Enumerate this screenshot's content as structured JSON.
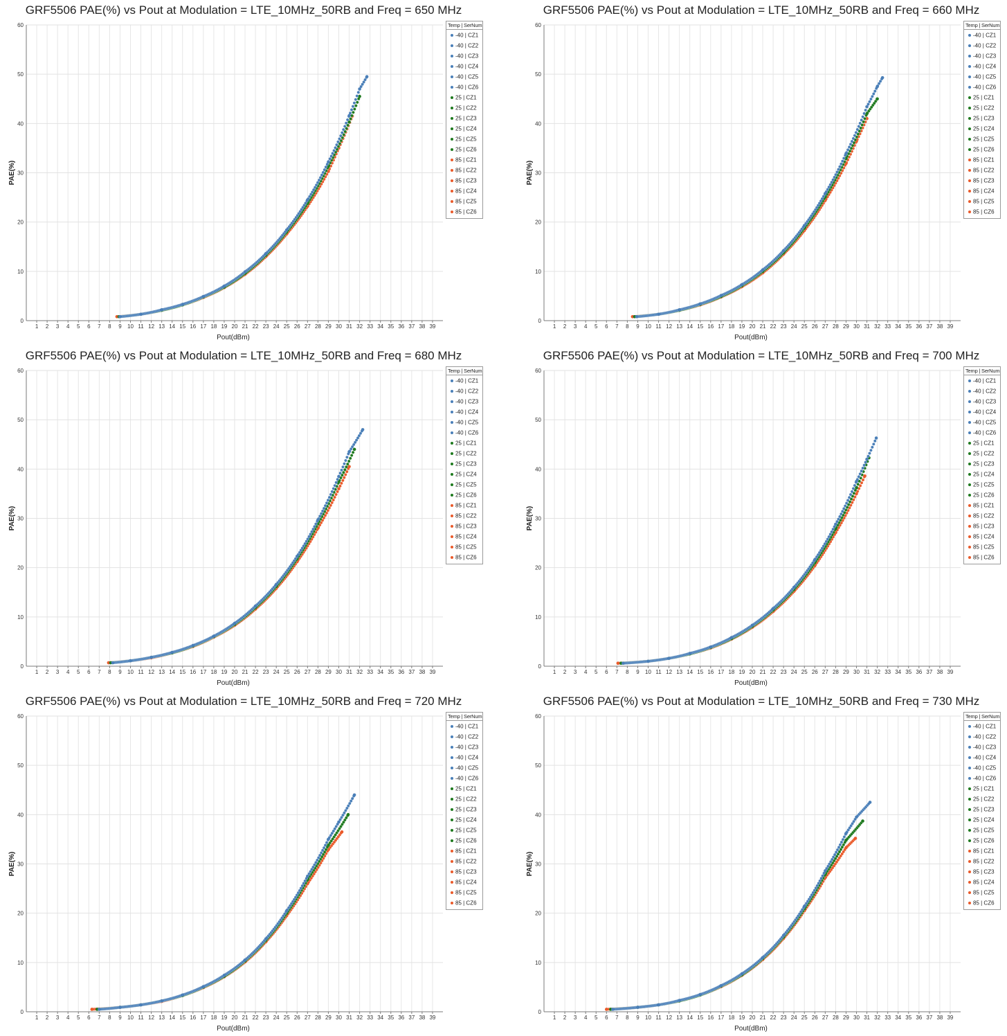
{
  "colors": {
    "-40": "#4a7fb8",
    "25": "#1f7a1f",
    "85": "#ea5a2a"
  },
  "legend_title": "Temp | SerNum",
  "legend_items": [
    {
      "temp": "-40",
      "label": "-40 | CZ1"
    },
    {
      "temp": "-40",
      "label": "-40 | CZ2"
    },
    {
      "temp": "-40",
      "label": "-40 | CZ3"
    },
    {
      "temp": "-40",
      "label": "-40 | CZ4"
    },
    {
      "temp": "-40",
      "label": "-40 | CZ5"
    },
    {
      "temp": "-40",
      "label": "-40 | CZ6"
    },
    {
      "temp": "25",
      "label": "25 | CZ1"
    },
    {
      "temp": "25",
      "label": "25 | CZ2"
    },
    {
      "temp": "25",
      "label": "25 | CZ3"
    },
    {
      "temp": "25",
      "label": "25 | CZ4"
    },
    {
      "temp": "25",
      "label": "25 | CZ5"
    },
    {
      "temp": "25",
      "label": "25 | CZ6"
    },
    {
      "temp": "85",
      "label": "85 | CZ1"
    },
    {
      "temp": "85",
      "label": "85 | CZ2"
    },
    {
      "temp": "85",
      "label": "85 | CZ3"
    },
    {
      "temp": "85",
      "label": "85 | CZ4"
    },
    {
      "temp": "85",
      "label": "85 | CZ5"
    },
    {
      "temp": "85",
      "label": "85 | CZ6"
    }
  ],
  "chart_data": [
    {
      "type": "scatter",
      "title": "GRF5506 PAE(%) vs Pout at Modulation = LTE_10MHz_50RB and Freq = 650 MHz",
      "xlabel": "Pout(dBm)",
      "ylabel": "PAE(%)",
      "xlim": [
        0,
        40
      ],
      "ylim": [
        0,
        60
      ],
      "xticks": [
        1,
        2,
        3,
        4,
        5,
        6,
        7,
        8,
        9,
        10,
        11,
        12,
        13,
        14,
        15,
        16,
        17,
        18,
        19,
        20,
        21,
        22,
        23,
        24,
        25,
        26,
        27,
        28,
        29,
        30,
        31,
        32,
        33,
        34,
        35,
        36,
        37,
        38,
        39
      ],
      "yticks": [
        0,
        10,
        20,
        30,
        40,
        50,
        60
      ],
      "grid": true,
      "legend_position": "right",
      "series": [
        {
          "name": "-40",
          "x": [
            9.0,
            11,
            13,
            15,
            17,
            19,
            21,
            23,
            25,
            27,
            29,
            31,
            32,
            32.7
          ],
          "y": [
            0.8,
            1.3,
            2.2,
            3.3,
            4.9,
            7.0,
            9.9,
            13.6,
            18.4,
            24.5,
            32.2,
            41.6,
            47.0,
            49.5
          ]
        },
        {
          "name": "25",
          "x": [
            8.9,
            11,
            13,
            15,
            17,
            19,
            21,
            23,
            25,
            27,
            29,
            31,
            32.0
          ],
          "y": [
            0.8,
            1.3,
            2.1,
            3.2,
            4.8,
            6.8,
            9.6,
            13.3,
            18.0,
            23.8,
            31.3,
            40.3,
            45.5
          ]
        },
        {
          "name": "85",
          "x": [
            8.7,
            11,
            13,
            15,
            17,
            19,
            21,
            23,
            25,
            27,
            29,
            30,
            31.3
          ],
          "y": [
            0.8,
            1.3,
            2.1,
            3.2,
            4.7,
            6.7,
            9.4,
            13.0,
            17.6,
            23.2,
            30.3,
            35.0,
            41.5
          ]
        }
      ]
    },
    {
      "type": "scatter",
      "title": "GRF5506 PAE(%) vs Pout at Modulation = LTE_10MHz_50RB and Freq = 660 MHz",
      "xlabel": "Pout(dBm)",
      "ylabel": "PAE(%)",
      "xlim": [
        0,
        40
      ],
      "ylim": [
        0,
        60
      ],
      "xticks": [
        1,
        2,
        3,
        4,
        5,
        6,
        7,
        8,
        9,
        10,
        11,
        12,
        13,
        14,
        15,
        16,
        17,
        18,
        19,
        20,
        21,
        22,
        23,
        24,
        25,
        26,
        27,
        28,
        29,
        30,
        31,
        32,
        33,
        34,
        35,
        36,
        37,
        38,
        39
      ],
      "yticks": [
        0,
        10,
        20,
        30,
        40,
        50,
        60
      ],
      "grid": true,
      "legend_position": "right",
      "series": [
        {
          "name": "-40",
          "x": [
            8.9,
            11,
            13,
            15,
            17,
            19,
            21,
            23,
            25,
            27,
            29,
            31,
            32,
            32.5
          ],
          "y": [
            0.8,
            1.3,
            2.2,
            3.4,
            5.1,
            7.3,
            10.3,
            14.2,
            19.3,
            25.8,
            33.9,
            43.4,
            47.5,
            49.3
          ]
        },
        {
          "name": "25",
          "x": [
            8.7,
            11,
            13,
            15,
            17,
            19,
            21,
            23,
            25,
            27,
            29,
            31,
            32.0
          ],
          "y": [
            0.8,
            1.3,
            2.1,
            3.3,
            4.9,
            7.1,
            10.0,
            13.8,
            18.8,
            25.1,
            32.9,
            42.0,
            45.0
          ]
        },
        {
          "name": "85",
          "x": [
            8.5,
            11,
            13,
            15,
            17,
            19,
            21,
            23,
            25,
            27,
            29,
            30,
            31.0
          ],
          "y": [
            0.8,
            1.3,
            2.1,
            3.2,
            4.8,
            6.9,
            9.7,
            13.5,
            18.3,
            24.4,
            31.9,
            36.4,
            41.0
          ]
        }
      ]
    },
    {
      "type": "scatter",
      "title": "GRF5506 PAE(%) vs Pout at Modulation = LTE_10MHz_50RB and Freq = 680 MHz",
      "xlabel": "Pout(dBm)",
      "ylabel": "PAE(%)",
      "xlim": [
        0,
        40
      ],
      "ylim": [
        0,
        60
      ],
      "xticks": [
        1,
        2,
        3,
        4,
        5,
        6,
        7,
        8,
        9,
        10,
        11,
        12,
        13,
        14,
        15,
        16,
        17,
        18,
        19,
        20,
        21,
        22,
        23,
        24,
        25,
        26,
        27,
        28,
        29,
        30,
        31,
        32,
        33,
        34,
        35,
        36,
        37,
        38,
        39
      ],
      "yticks": [
        0,
        10,
        20,
        30,
        40,
        50,
        60
      ],
      "grid": true,
      "legend_position": "right",
      "series": [
        {
          "name": "-40",
          "x": [
            8.3,
            10,
            12,
            14,
            16,
            18,
            20,
            22,
            24,
            26,
            28,
            30,
            31,
            32.3
          ],
          "y": [
            0.7,
            1.1,
            1.8,
            2.8,
            4.2,
            6.1,
            8.7,
            12.2,
            16.6,
            22.3,
            29.7,
            38.5,
            43.5,
            48.0
          ]
        },
        {
          "name": "25",
          "x": [
            8.1,
            10,
            12,
            14,
            16,
            18,
            20,
            22,
            24,
            26,
            28,
            30,
            31.5
          ],
          "y": [
            0.7,
            1.1,
            1.8,
            2.7,
            4.1,
            6.0,
            8.5,
            11.9,
            16.2,
            21.8,
            28.9,
            37.4,
            44.0
          ]
        },
        {
          "name": "85",
          "x": [
            7.9,
            10,
            12,
            14,
            16,
            18,
            20,
            22,
            24,
            26,
            28,
            30,
            31.0
          ],
          "y": [
            0.7,
            1.1,
            1.7,
            2.7,
            4.0,
            5.9,
            8.3,
            11.6,
            15.8,
            21.2,
            28.0,
            36.0,
            40.5
          ]
        }
      ]
    },
    {
      "type": "scatter",
      "title": "GRF5506 PAE(%) vs Pout at Modulation = LTE_10MHz_50RB and Freq = 700 MHz",
      "xlabel": "Pout(dBm)",
      "ylabel": "PAE(%)",
      "xlim": [
        0,
        40
      ],
      "ylim": [
        0,
        60
      ],
      "xticks": [
        1,
        2,
        3,
        4,
        5,
        6,
        7,
        8,
        9,
        10,
        11,
        12,
        13,
        14,
        15,
        16,
        17,
        18,
        19,
        20,
        21,
        22,
        23,
        24,
        25,
        26,
        27,
        28,
        29,
        30,
        31,
        32,
        33,
        34,
        35,
        36,
        37,
        38,
        39
      ],
      "yticks": [
        0,
        10,
        20,
        30,
        40,
        50,
        60
      ],
      "grid": true,
      "legend_position": "right",
      "series": [
        {
          "name": "-40",
          "x": [
            7.6,
            10,
            12,
            14,
            16,
            18,
            20,
            22,
            24,
            26,
            28,
            30,
            31,
            31.9
          ],
          "y": [
            0.6,
            1.0,
            1.6,
            2.6,
            3.9,
            5.8,
            8.3,
            11.7,
            16.0,
            21.6,
            28.8,
            37.5,
            42.0,
            46.3
          ]
        },
        {
          "name": "25",
          "x": [
            7.4,
            10,
            12,
            14,
            16,
            18,
            20,
            22,
            24,
            26,
            28,
            30,
            31.2
          ],
          "y": [
            0.6,
            1.0,
            1.6,
            2.5,
            3.8,
            5.6,
            8.1,
            11.4,
            15.6,
            21.0,
            27.9,
            36.2,
            42.3
          ]
        },
        {
          "name": "85",
          "x": [
            7.1,
            10,
            12,
            14,
            16,
            18,
            20,
            22,
            24,
            26,
            28,
            30,
            30.8
          ],
          "y": [
            0.6,
            1.0,
            1.6,
            2.5,
            3.7,
            5.5,
            7.9,
            11.1,
            15.2,
            20.4,
            27.1,
            35.0,
            38.6
          ]
        }
      ]
    },
    {
      "type": "scatter",
      "title": "GRF5506 PAE(%) vs Pout at Modulation = LTE_10MHz_50RB and Freq = 720 MHz",
      "xlabel": "Pout(dBm)",
      "ylabel": "PAE(%)",
      "xlim": [
        0,
        40
      ],
      "ylim": [
        0,
        60
      ],
      "xticks": [
        1,
        2,
        3,
        4,
        5,
        6,
        7,
        8,
        9,
        10,
        11,
        12,
        13,
        14,
        15,
        16,
        17,
        18,
        19,
        20,
        21,
        22,
        23,
        24,
        25,
        26,
        27,
        28,
        29,
        30,
        31,
        32,
        33,
        34,
        35,
        36,
        37,
        38,
        39
      ],
      "yticks": [
        0,
        10,
        20,
        30,
        40,
        50,
        60
      ],
      "grid": true,
      "legend_position": "right",
      "series": [
        {
          "name": "-40",
          "x": [
            7.0,
            9,
            11,
            13,
            15,
            17,
            19,
            21,
            23,
            25,
            27,
            29,
            30,
            31.5
          ],
          "y": [
            0.5,
            0.9,
            1.4,
            2.2,
            3.4,
            5.1,
            7.4,
            10.5,
            14.8,
            20.5,
            27.5,
            35.0,
            38.5,
            44.0
          ]
        },
        {
          "name": "25",
          "x": [
            6.8,
            9,
            11,
            13,
            15,
            17,
            19,
            21,
            23,
            25,
            27,
            29,
            30.9
          ],
          "y": [
            0.5,
            0.9,
            1.4,
            2.2,
            3.3,
            5.0,
            7.2,
            10.3,
            14.5,
            20.0,
            26.8,
            33.8,
            40.0
          ]
        },
        {
          "name": "85",
          "x": [
            6.3,
            9,
            11,
            13,
            15,
            17,
            19,
            21,
            23,
            25,
            27,
            29,
            30.3
          ],
          "y": [
            0.5,
            0.9,
            1.4,
            2.1,
            3.3,
            4.9,
            7.1,
            10.1,
            14.2,
            19.5,
            26.0,
            32.9,
            36.5
          ]
        }
      ]
    },
    {
      "type": "scatter",
      "title": "GRF5506 PAE(%) vs Pout at Modulation = LTE_10MHz_50RB and Freq = 730 MHz",
      "xlabel": "Pout(dBm)",
      "ylabel": "PAE(%)",
      "xlim": [
        0,
        40
      ],
      "ylim": [
        0,
        60
      ],
      "xticks": [
        1,
        2,
        3,
        4,
        5,
        6,
        7,
        8,
        9,
        10,
        11,
        12,
        13,
        14,
        15,
        16,
        17,
        18,
        19,
        20,
        21,
        22,
        23,
        24,
        25,
        26,
        27,
        28,
        29,
        30,
        31,
        32,
        33,
        34,
        35,
        36,
        37,
        38,
        39
      ],
      "yticks": [
        0,
        10,
        20,
        30,
        40,
        50,
        60
      ],
      "grid": true,
      "legend_position": "right",
      "series": [
        {
          "name": "-40",
          "x": [
            6.6,
            9,
            11,
            13,
            15,
            17,
            19,
            21,
            23,
            25,
            27,
            29,
            30,
            31.3
          ],
          "y": [
            0.5,
            0.9,
            1.4,
            2.3,
            3.5,
            5.3,
            7.7,
            11.0,
            15.5,
            21.4,
            28.6,
            36.2,
            39.5,
            42.5
          ]
        },
        {
          "name": "25",
          "x": [
            6.4,
            9,
            11,
            13,
            15,
            17,
            19,
            21,
            23,
            25,
            27,
            29,
            30.6
          ],
          "y": [
            0.5,
            0.9,
            1.4,
            2.2,
            3.4,
            5.2,
            7.5,
            10.8,
            15.2,
            20.9,
            27.9,
            34.8,
            38.7
          ]
        },
        {
          "name": "85",
          "x": [
            6.0,
            9,
            11,
            13,
            15,
            17,
            19,
            21,
            23,
            25,
            27,
            29,
            29.9
          ],
          "y": [
            0.5,
            0.9,
            1.4,
            2.2,
            3.4,
            5.1,
            7.4,
            10.6,
            14.9,
            20.5,
            27.2,
            33.3,
            35.2
          ]
        }
      ]
    }
  ]
}
